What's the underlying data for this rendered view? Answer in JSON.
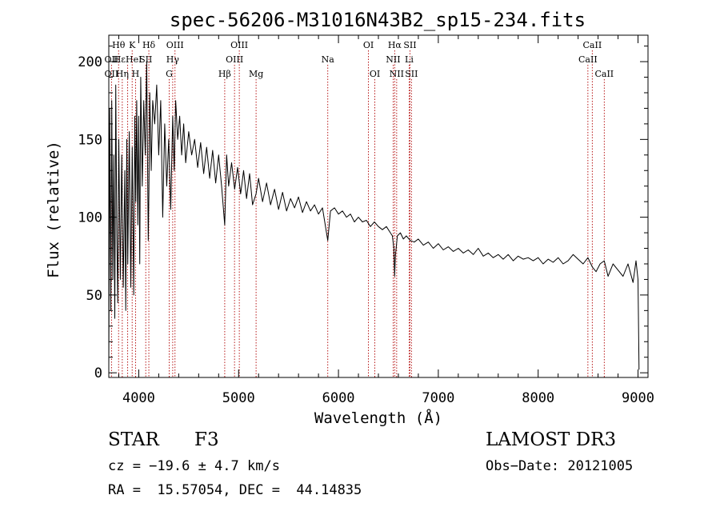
{
  "chart_data": {
    "type": "line",
    "title": "spec-56206-M31016N43B2_sp15-234.fits",
    "xlabel": "Wavelength (Å)",
    "ylabel": "Flux (relative)",
    "xlim": [
      3700,
      9100
    ],
    "ylim": [
      -3,
      217
    ],
    "xticks": [
      4000,
      5000,
      6000,
      7000,
      8000,
      9000
    ],
    "yticks": [
      0,
      50,
      100,
      150,
      200
    ],
    "xtick_labels": [
      "4000",
      "5000",
      "6000",
      "7000",
      "8000",
      "9000"
    ],
    "ytick_labels": [
      "0",
      "50",
      "100",
      "150",
      "200"
    ],
    "series": [
      {
        "name": "spectrum",
        "color": "#000000",
        "x": [
          3700,
          3710,
          3720,
          3730,
          3740,
          3750,
          3760,
          3770,
          3780,
          3790,
          3800,
          3815,
          3830,
          3845,
          3860,
          3870,
          3880,
          3890,
          3905,
          3920,
          3935,
          3950,
          3960,
          3970,
          3980,
          3990,
          4000,
          4010,
          4020,
          4035,
          4050,
          4065,
          4080,
          4095,
          4101,
          4110,
          4125,
          4140,
          4160,
          4180,
          4200,
          4220,
          4240,
          4260,
          4280,
          4300,
          4320,
          4340,
          4355,
          4370,
          4390,
          4410,
          4430,
          4450,
          4470,
          4500,
          4530,
          4560,
          4590,
          4620,
          4650,
          4680,
          4710,
          4740,
          4770,
          4800,
          4830,
          4861,
          4880,
          4900,
          4930,
          4960,
          4990,
          5020,
          5050,
          5080,
          5110,
          5140,
          5175,
          5200,
          5240,
          5280,
          5320,
          5360,
          5400,
          5440,
          5480,
          5520,
          5560,
          5600,
          5640,
          5680,
          5720,
          5760,
          5800,
          5840,
          5893,
          5920,
          5960,
          6000,
          6040,
          6080,
          6120,
          6160,
          6200,
          6240,
          6280,
          6320,
          6360,
          6400,
          6440,
          6480,
          6520,
          6540,
          6555,
          6563,
          6570,
          6590,
          6620,
          6650,
          6680,
          6720,
          6760,
          6800,
          6850,
          6900,
          6950,
          7000,
          7050,
          7100,
          7150,
          7200,
          7250,
          7300,
          7350,
          7400,
          7450,
          7500,
          7550,
          7600,
          7650,
          7700,
          7750,
          7800,
          7850,
          7900,
          7950,
          8000,
          8050,
          8100,
          8150,
          8200,
          8250,
          8300,
          8350,
          8400,
          8450,
          8498,
          8542,
          8580,
          8620,
          8662,
          8700,
          8750,
          8800,
          8850,
          8900,
          8950,
          8980,
          9000,
          9010
        ],
        "values": [
          5,
          170,
          40,
          175,
          60,
          140,
          35,
          185,
          90,
          45,
          150,
          60,
          140,
          55,
          130,
          40,
          150,
          70,
          155,
          55,
          145,
          50,
          165,
          110,
          175,
          95,
          165,
          70,
          190,
          120,
          175,
          140,
          200,
          85,
          115,
          180,
          130,
          175,
          160,
          185,
          140,
          175,
          100,
          160,
          120,
          150,
          105,
          165,
          130,
          175,
          150,
          165,
          140,
          160,
          135,
          155,
          140,
          150,
          132,
          148,
          128,
          145,
          125,
          143,
          122,
          140,
          120,
          95,
          140,
          120,
          135,
          118,
          132,
          115,
          130,
          112,
          128,
          108,
          115,
          125,
          110,
          122,
          108,
          118,
          105,
          116,
          104,
          112,
          106,
          113,
          103,
          110,
          104,
          108,
          102,
          106,
          85,
          104,
          106,
          102,
          104,
          100,
          102,
          97,
          100,
          97,
          98,
          94,
          97,
          94,
          92,
          94,
          90,
          88,
          80,
          62,
          75,
          88,
          90,
          86,
          88,
          85,
          84,
          86,
          82,
          84,
          80,
          83,
          79,
          81,
          78,
          80,
          77,
          79,
          76,
          80,
          75,
          77,
          74,
          76,
          73,
          76,
          72,
          75,
          73,
          74,
          72,
          74,
          70,
          73,
          71,
          74,
          70,
          72,
          76,
          73,
          70,
          74,
          68,
          65,
          70,
          72,
          62,
          70,
          66,
          62,
          70,
          58,
          72,
          60,
          2
        ]
      }
    ],
    "line_markers": {
      "color": "#b00000",
      "lines": [
        {
          "label": "Hθ",
          "wavelength": 3798,
          "row": 1
        },
        {
          "label": "OII",
          "wavelength": 3727,
          "row": 2
        },
        {
          "label": "OII",
          "wavelength": 3727,
          "row": 3
        },
        {
          "label": "HεHeI",
          "wavelength": 3889,
          "row": 2
        },
        {
          "label": "Hη",
          "wavelength": 3835,
          "row": 3
        },
        {
          "label": "K",
          "wavelength": 3934,
          "row": 1
        },
        {
          "label": "SII",
          "wavelength": 4070,
          "row": 2
        },
        {
          "label": "H",
          "wavelength": 3968,
          "row": 3
        },
        {
          "label": "Hδ",
          "wavelength": 4101,
          "row": 1
        },
        {
          "label": "OIII",
          "wavelength": 4363,
          "row": 1
        },
        {
          "label": "Hγ",
          "wavelength": 4340,
          "row": 2
        },
        {
          "label": "G",
          "wavelength": 4305,
          "row": 3
        },
        {
          "label": "OIII",
          "wavelength": 5007,
          "row": 1
        },
        {
          "label": "OIII",
          "wavelength": 4959,
          "row": 2
        },
        {
          "label": "Hβ",
          "wavelength": 4861,
          "row": 3
        },
        {
          "label": "Mg",
          "wavelength": 5175,
          "row": 3
        },
        {
          "label": "Na",
          "wavelength": 5893,
          "row": 2
        },
        {
          "label": "OI",
          "wavelength": 6300,
          "row": 1
        },
        {
          "label": "OI",
          "wavelength": 6364,
          "row": 3
        },
        {
          "label": "Hα",
          "wavelength": 6563,
          "row": 1
        },
        {
          "label": "SII",
          "wavelength": 6716,
          "row": 1
        },
        {
          "label": "NII",
          "wavelength": 6548,
          "row": 2
        },
        {
          "label": "Li",
          "wavelength": 6708,
          "row": 2
        },
        {
          "label": "NII",
          "wavelength": 6583,
          "row": 3
        },
        {
          "label": "SII",
          "wavelength": 6731,
          "row": 3
        },
        {
          "label": "CaII",
          "wavelength": 8542,
          "row": 1
        },
        {
          "label": "CaII",
          "wavelength": 8498,
          "row": 2
        },
        {
          "label": "CaII",
          "wavelength": 8662,
          "row": 3
        }
      ]
    }
  },
  "footer": {
    "object_class": "STAR",
    "subclass": "F3",
    "survey": "LAMOST DR3",
    "cz": "cz = −19.6 ± 4.7 km/s",
    "obs_date": "Obs−Date: 20121005",
    "coords": "RA =  15.57054, DEC =  44.14835"
  }
}
